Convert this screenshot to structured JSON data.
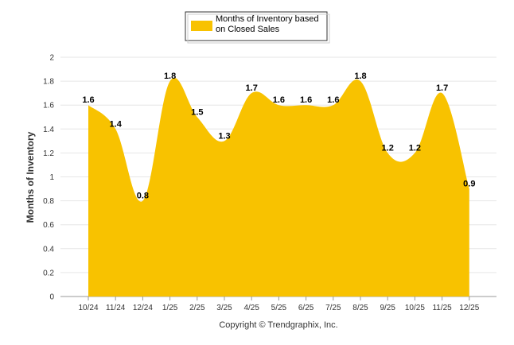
{
  "chart_data": {
    "type": "area",
    "categories": [
      "10/24",
      "11/24",
      "12/24",
      "1/25",
      "2/25",
      "3/25",
      "4/25",
      "5/25",
      "6/25",
      "7/25",
      "8/25",
      "9/25",
      "10/25",
      "11/25",
      "12/25"
    ],
    "series": [
      {
        "name": "Months of Inventory based on Closed Sales",
        "name_lines": [
          "Months of Inventory based",
          "on Closed Sales"
        ],
        "values": [
          1.6,
          1.4,
          0.8,
          1.8,
          1.5,
          1.3,
          1.7,
          1.6,
          1.6,
          1.6,
          1.8,
          1.2,
          1.2,
          1.7,
          0.9
        ],
        "labels": [
          "1.6",
          "1.4",
          "0.8",
          "1.8",
          "1.5",
          "1.3",
          "1.7",
          "1.6",
          "1.6",
          "1.6",
          "1.8",
          "1.2",
          "1.2",
          "1.7",
          "0.9"
        ],
        "color": "#F8C200"
      }
    ],
    "title": "",
    "xlabel": "",
    "ylabel": "Months of Inventory",
    "ylim": [
      0,
      2
    ],
    "yticks": [
      "0",
      "0.2",
      "0.4",
      "0.6",
      "0.8",
      "1",
      "1.2",
      "1.4",
      "1.6",
      "1.8",
      "2"
    ],
    "grid": true,
    "legend": "top-center",
    "credit": "Copyright © Trendgraphix, Inc."
  }
}
